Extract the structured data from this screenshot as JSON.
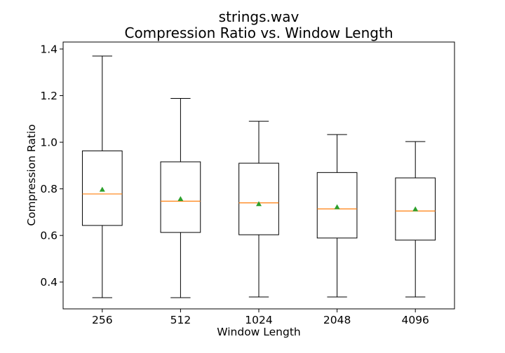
{
  "chart_data": {
    "type": "box",
    "title": "strings.wav",
    "subtitle": "Compression Ratio vs. Window Length",
    "xlabel": "Window Length",
    "ylabel": "Compression Ratio",
    "ylim": [
      0.285,
      1.43
    ],
    "yticks": [
      0.4,
      0.6,
      0.8,
      1.0,
      1.2,
      1.4
    ],
    "ytick_labels": [
      "0.4",
      "0.6",
      "0.8",
      "1.0",
      "1.2",
      "1.4"
    ],
    "categories": [
      "256",
      "512",
      "1024",
      "2048",
      "4096"
    ],
    "boxes": [
      {
        "whisker_low": 0.333,
        "q1": 0.643,
        "median": 0.778,
        "q3": 0.963,
        "whisker_high": 1.37,
        "mean": 0.797
      },
      {
        "whisker_low": 0.333,
        "q1": 0.613,
        "median": 0.747,
        "q3": 0.916,
        "whisker_high": 1.188,
        "mean": 0.757
      },
      {
        "whisker_low": 0.336,
        "q1": 0.603,
        "median": 0.74,
        "q3": 0.91,
        "whisker_high": 1.09,
        "mean": 0.735
      },
      {
        "whisker_low": 0.336,
        "q1": 0.589,
        "median": 0.714,
        "q3": 0.87,
        "whisker_high": 1.033,
        "mean": 0.722
      },
      {
        "whisker_low": 0.336,
        "q1": 0.58,
        "median": 0.705,
        "q3": 0.847,
        "whisker_high": 1.003,
        "mean": 0.713
      }
    ],
    "colors": {
      "box": "#000000",
      "median": "#ff7f0e",
      "mean": "#2ca02c"
    },
    "grid": false,
    "legend": "none"
  }
}
